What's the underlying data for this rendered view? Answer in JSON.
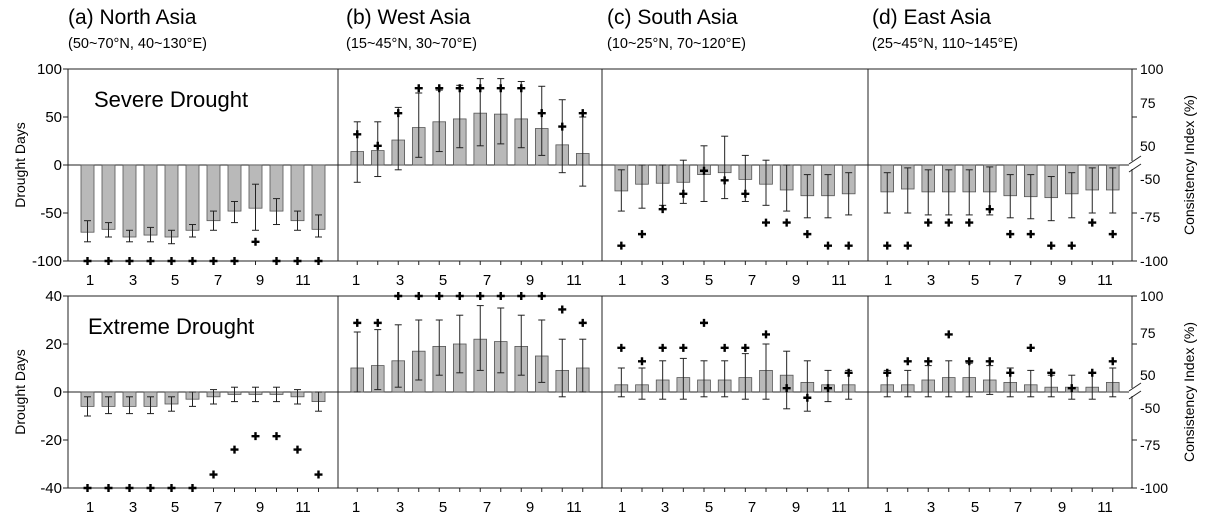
{
  "figure": {
    "regions": [
      {
        "id": "a",
        "name": "(a) North Asia",
        "coords": "(50~70°N, 40~130°E)"
      },
      {
        "id": "b",
        "name": "(b) West Asia",
        "coords": "(15~45°N, 30~70°E)"
      },
      {
        "id": "c",
        "name": "(c) South Asia",
        "coords": "(10~25°N, 70~120°E)"
      },
      {
        "id": "d",
        "name": "(d) East Asia",
        "coords": "(25~45°N, 110~145°E)"
      }
    ],
    "rows": [
      {
        "id": "severe",
        "title": "Severe Drought",
        "left_ylabel": "Drought Days",
        "right_ylabel": "Consistency Index (%)"
      },
      {
        "id": "extreme",
        "title": "Extreme Drought",
        "left_ylabel": "Drought Days",
        "right_ylabel": "Consistency Index (%)"
      }
    ]
  },
  "chart_data": [
    {
      "type": "bar",
      "region": "a",
      "row": "severe",
      "x": [
        1,
        2,
        3,
        4,
        5,
        6,
        7,
        8,
        9,
        10,
        11,
        12
      ],
      "x_ticks": [
        "1",
        "3",
        "5",
        "7",
        "9",
        "11"
      ],
      "ylim": [
        -100,
        100
      ],
      "y_ticks": [
        "100",
        "50",
        "0",
        "-50",
        "-100"
      ],
      "values": [
        -70,
        -67,
        -75,
        -73,
        -75,
        -68,
        -58,
        -48,
        -45,
        -48,
        -58,
        -67
      ],
      "err_low": [
        -80,
        -75,
        -80,
        -80,
        -82,
        -75,
        -68,
        -60,
        -68,
        -62,
        -68,
        -75
      ],
      "err_high": [
        -58,
        -60,
        -68,
        -65,
        -68,
        -62,
        -48,
        -38,
        -20,
        -35,
        -48,
        -52
      ],
      "consistency_index": [
        -100,
        -100,
        -100,
        -100,
        -100,
        -100,
        -100,
        -100,
        -90,
        -100,
        -100,
        -100
      ]
    },
    {
      "type": "bar",
      "region": "b",
      "row": "severe",
      "x": [
        1,
        2,
        3,
        4,
        5,
        6,
        7,
        8,
        9,
        10,
        11,
        12
      ],
      "x_ticks": [
        "1",
        "3",
        "5",
        "7",
        "9",
        "11"
      ],
      "ylim": [
        -100,
        100
      ],
      "values": [
        14,
        15,
        26,
        39,
        45,
        48,
        54,
        53,
        48,
        38,
        21,
        12
      ],
      "err_low": [
        -18,
        -12,
        -5,
        8,
        14,
        18,
        20,
        22,
        18,
        10,
        -8,
        -22
      ],
      "err_high": [
        45,
        45,
        60,
        75,
        78,
        83,
        90,
        90,
        87,
        82,
        68,
        50
      ],
      "consistency_index": [
        66,
        60,
        77,
        90,
        90,
        90,
        90,
        90,
        90,
        77,
        70,
        77
      ]
    },
    {
      "type": "bar",
      "region": "c",
      "row": "severe",
      "x": [
        1,
        2,
        3,
        4,
        5,
        6,
        7,
        8,
        9,
        10,
        11,
        12
      ],
      "x_ticks": [
        "1",
        "3",
        "5",
        "7",
        "9",
        "11"
      ],
      "ylim": [
        -100,
        100
      ],
      "right_y_ticks": [
        "100",
        "75",
        "50",
        "-50",
        "-75",
        "-100"
      ],
      "values": [
        -27,
        -20,
        -19,
        -18,
        -10,
        -8,
        -15,
        -20,
        -26,
        -32,
        -32,
        -30
      ],
      "err_low": [
        -48,
        -45,
        -42,
        -40,
        -38,
        -35,
        -38,
        -42,
        -48,
        -55,
        -55,
        -52
      ],
      "err_high": [
        -5,
        0,
        0,
        5,
        20,
        30,
        10,
        5,
        0,
        -10,
        -10,
        -8
      ],
      "consistency_index": [
        -92,
        -86,
        -73,
        -65,
        -53,
        -58,
        -65,
        -80,
        -80,
        -86,
        -92,
        -92
      ]
    },
    {
      "type": "bar",
      "region": "d",
      "row": "severe",
      "x": [
        1,
        2,
        3,
        4,
        5,
        6,
        7,
        8,
        9,
        10,
        11,
        12
      ],
      "x_ticks": [
        "1",
        "3",
        "5",
        "7",
        "9",
        "11"
      ],
      "ylim": [
        -100,
        100
      ],
      "right_y_ticks": [
        "100",
        "75",
        "50",
        "-50",
        "-75",
        "-100"
      ],
      "values": [
        -28,
        -25,
        -28,
        -28,
        -28,
        -28,
        -32,
        -33,
        -34,
        -30,
        -26,
        -26
      ],
      "err_low": [
        -50,
        -50,
        -52,
        -52,
        -52,
        -52,
        -55,
        -56,
        -58,
        -55,
        -50,
        -50
      ],
      "err_high": [
        -8,
        -3,
        -5,
        -5,
        -5,
        -2,
        -10,
        -10,
        -12,
        -8,
        -3,
        -3
      ],
      "consistency_index": [
        -92,
        -92,
        -80,
        -80,
        -80,
        -73,
        -86,
        -86,
        -92,
        -92,
        -80,
        -86
      ]
    },
    {
      "type": "bar",
      "region": "a",
      "row": "extreme",
      "x": [
        1,
        2,
        3,
        4,
        5,
        6,
        7,
        8,
        9,
        10,
        11,
        12
      ],
      "x_ticks": [
        "1",
        "3",
        "5",
        "7",
        "9",
        "11"
      ],
      "ylim": [
        -40,
        40
      ],
      "y_ticks": [
        "40",
        "20",
        "0",
        "-20",
        "-40"
      ],
      "values": [
        -6,
        -6,
        -6,
        -6,
        -5,
        -3,
        -2,
        -1,
        -1,
        -1,
        -2,
        -4
      ],
      "err_low": [
        -10,
        -9,
        -9,
        -9,
        -8,
        -6,
        -5,
        -4,
        -4,
        -4,
        -5,
        -8
      ],
      "err_high": [
        -2,
        -2,
        -2,
        -2,
        -2,
        0,
        1,
        2,
        2,
        2,
        1,
        0
      ],
      "consistency_index": [
        -100,
        -100,
        -100,
        -100,
        -100,
        -100,
        -93,
        -80,
        -73,
        -73,
        -80,
        -93
      ]
    },
    {
      "type": "bar",
      "region": "b",
      "row": "extreme",
      "x": [
        1,
        2,
        3,
        4,
        5,
        6,
        7,
        8,
        9,
        10,
        11,
        12
      ],
      "x_ticks": [
        "1",
        "3",
        "5",
        "7",
        "9",
        "11"
      ],
      "ylim": [
        -40,
        40
      ],
      "values": [
        10,
        11,
        13,
        17,
        19,
        20,
        22,
        21,
        19,
        15,
        9,
        10
      ],
      "err_low": [
        0,
        1,
        2,
        5,
        7,
        8,
        9,
        8,
        7,
        4,
        -2,
        0
      ],
      "err_high": [
        25,
        26,
        28,
        30,
        30,
        32,
        36,
        35,
        32,
        30,
        22,
        22
      ],
      "consistency_index": [
        86,
        86,
        100,
        100,
        100,
        100,
        100,
        100,
        100,
        100,
        93,
        86
      ]
    },
    {
      "type": "bar",
      "region": "c",
      "row": "extreme",
      "x": [
        1,
        2,
        3,
        4,
        5,
        6,
        7,
        8,
        9,
        10,
        11,
        12
      ],
      "x_ticks": [
        "1",
        "3",
        "5",
        "7",
        "9",
        "11"
      ],
      "ylim": [
        -40,
        40
      ],
      "right_y_ticks": [
        "100",
        "75",
        "50",
        "-50",
        "-75",
        "-100"
      ],
      "values": [
        3,
        3,
        5,
        6,
        5,
        5,
        6,
        9,
        7,
        4,
        3,
        3
      ],
      "err_low": [
        -2,
        -3,
        -3,
        -3,
        -2,
        -2,
        -3,
        -3,
        -7,
        -8,
        -4,
        -3
      ],
      "err_high": [
        10,
        10,
        13,
        14,
        13,
        13,
        16,
        20,
        17,
        13,
        9,
        9
      ],
      "consistency_index": [
        73,
        66,
        73,
        73,
        86,
        73,
        73,
        80,
        52,
        -53,
        52,
        60
      ]
    },
    {
      "type": "bar",
      "region": "d",
      "row": "extreme",
      "x": [
        1,
        2,
        3,
        4,
        5,
        6,
        7,
        8,
        9,
        10,
        11,
        12
      ],
      "x_ticks": [
        "1",
        "3",
        "5",
        "7",
        "9",
        "11"
      ],
      "ylim": [
        -40,
        40
      ],
      "right_y_ticks": [
        "100",
        "75",
        "50",
        "-50",
        "-75",
        "-100"
      ],
      "values": [
        3,
        3,
        5,
        6,
        6,
        5,
        4,
        3,
        2,
        2,
        2,
        4
      ],
      "err_low": [
        -2,
        -2,
        -2,
        -2,
        -2,
        -1,
        -2,
        -2,
        -2,
        -3,
        -3,
        -2
      ],
      "err_high": [
        9,
        9,
        11,
        13,
        12,
        11,
        10,
        9,
        7,
        7,
        8,
        10
      ],
      "consistency_index": [
        60,
        66,
        66,
        80,
        66,
        66,
        60,
        73,
        60,
        52,
        60,
        66
      ]
    }
  ]
}
